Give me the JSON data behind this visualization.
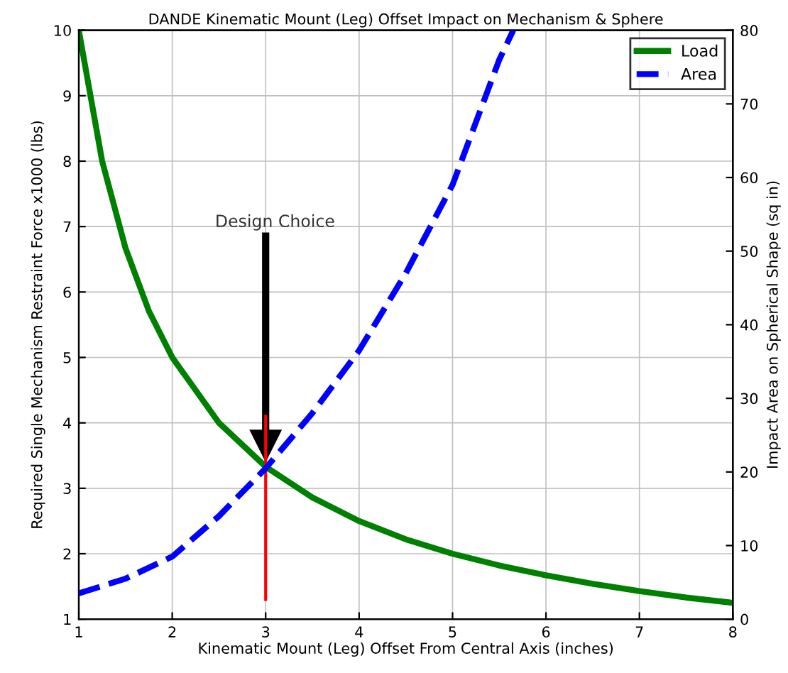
{
  "chart_data": {
    "type": "line",
    "title": "DANDE Kinematic Mount (Leg) Offset Impact on Mechanism & Sphere",
    "xlabel": "Kinematic Mount (Leg) Offset From Central Axis (inches)",
    "ylabel": "Required Single Mechanism Restraint Force x1000 (lbs)",
    "y2label": "Impact Area on Spherical Shape (sq in)",
    "series": [
      {
        "name": "Load",
        "color": "#008000",
        "line_style": "solid",
        "x": [
          1,
          1.25,
          1.5,
          1.75,
          2,
          2.5,
          3,
          3.5,
          4,
          4.5,
          5,
          5.5,
          6,
          6.5,
          7,
          7.5,
          8
        ],
        "values": [
          10,
          8,
          6.67,
          5.71,
          5,
          4,
          3.33,
          2.86,
          2.5,
          2.22,
          2,
          1.82,
          1.67,
          1.54,
          1.43,
          1.33,
          1.25
        ]
      },
      {
        "name": "Area",
        "color": "#0000ff",
        "line_style": "dashed",
        "axis": "y2",
        "x": [
          1,
          1.5,
          2,
          2.5,
          3,
          3.5,
          4,
          4.5,
          5,
          5.5,
          5.65
        ],
        "values": [
          3.5,
          5.5,
          8.5,
          14,
          20.5,
          28,
          36.5,
          47,
          59,
          76,
          80
        ]
      },
      {
        "color": "#ff0000",
        "line_style": "solid",
        "x": [
          3,
          3
        ],
        "values": [
          1.3,
          4.1
        ]
      }
    ],
    "annotations": [
      "Design Choice"
    ],
    "xlim": [
      1,
      8
    ],
    "xticks": [
      1,
      2,
      3,
      4,
      5,
      6,
      7,
      8
    ],
    "ylim": [
      1,
      10
    ],
    "yticks": [
      1,
      2,
      3,
      4,
      5,
      6,
      7,
      8,
      9,
      10
    ],
    "y2lim": [
      0,
      80
    ],
    "y2ticks": [
      0,
      10,
      20,
      30,
      40,
      50,
      60,
      70,
      80
    ],
    "grid": true,
    "legend": "top right"
  }
}
